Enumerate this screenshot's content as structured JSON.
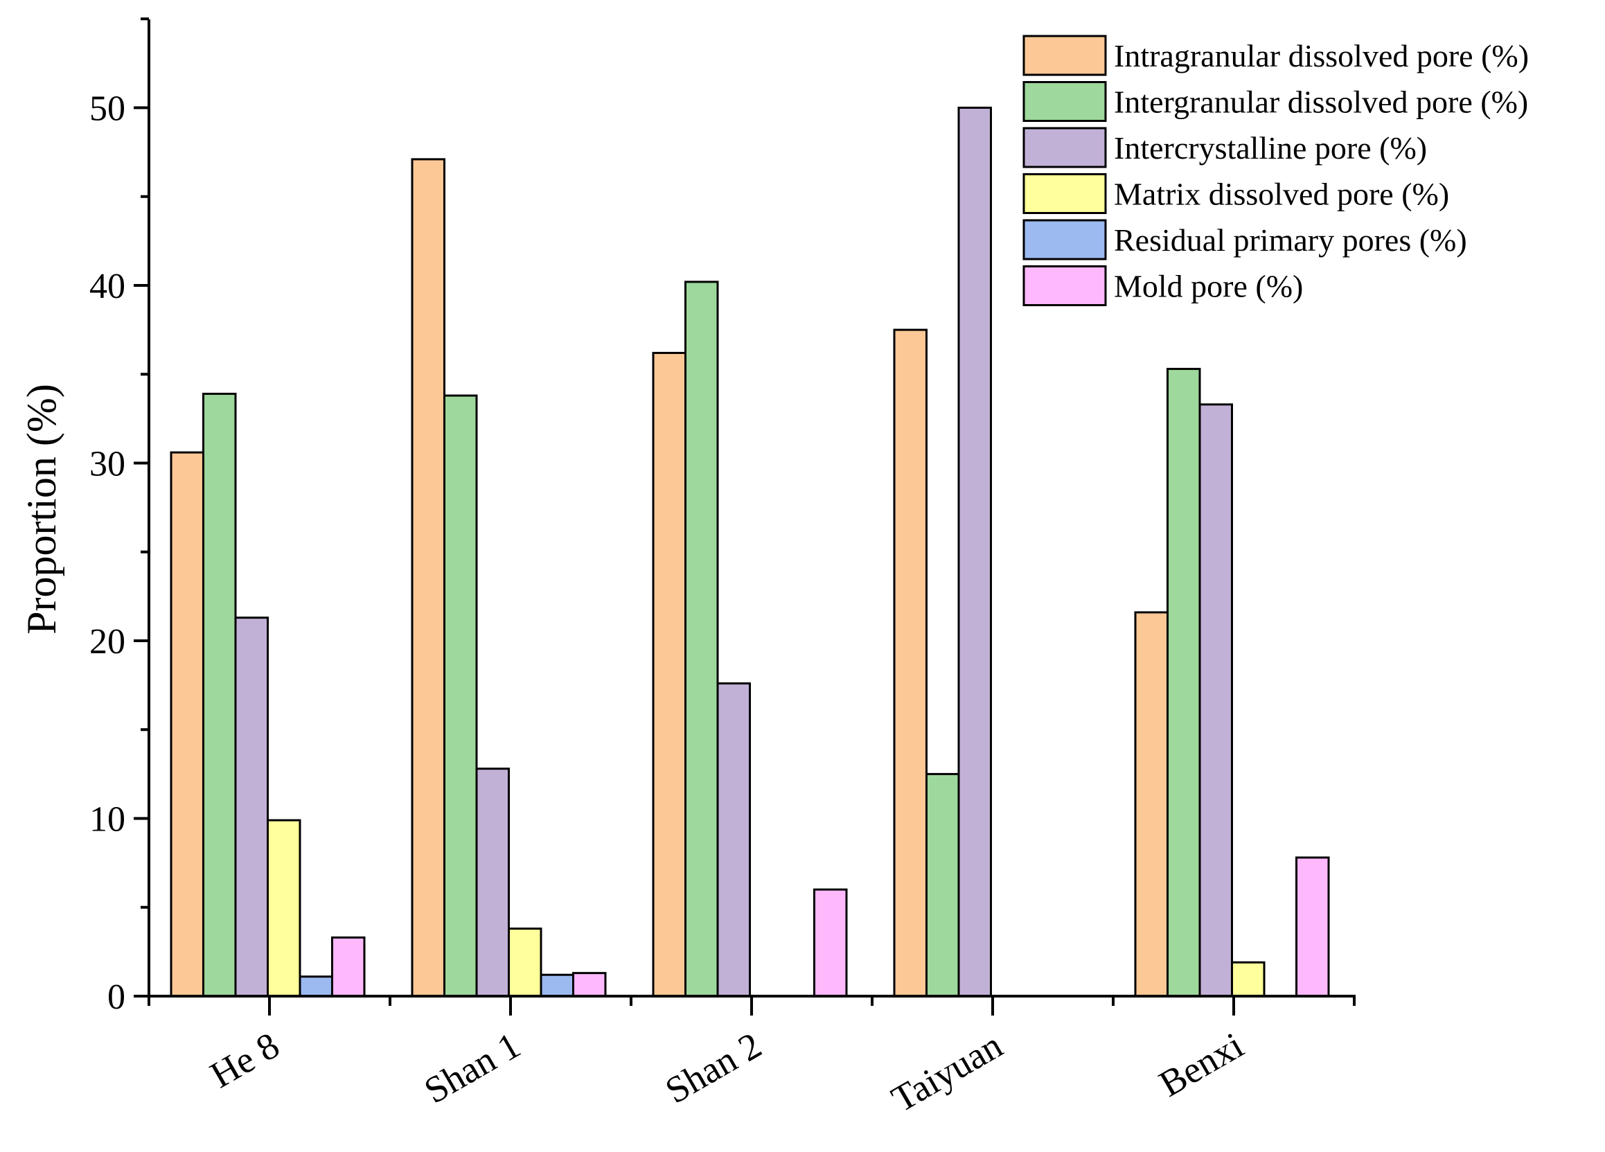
{
  "chart_data": {
    "type": "bar",
    "title": "",
    "xlabel": "",
    "ylabel": "Proportion  (%)",
    "ylim": [
      0,
      55
    ],
    "yticks": [
      0,
      10,
      20,
      30,
      40,
      50
    ],
    "categories": [
      "He 8",
      "Shan 1",
      "Shan 2",
      "Taiyuan",
      "Benxi"
    ],
    "series": [
      {
        "name": "Intragranular dissolved pore (%)",
        "color": "#fcc896",
        "values": [
          30.6,
          47.1,
          36.2,
          37.5,
          21.6
        ]
      },
      {
        "name": "Intergranular dissolved pore (%)",
        "color": "#9ed89c",
        "values": [
          33.9,
          33.8,
          40.2,
          12.5,
          35.3
        ]
      },
      {
        "name": "Intercrystalline pore (%)",
        "color": "#c2b1d7",
        "values": [
          21.3,
          12.8,
          17.6,
          50.0,
          33.3
        ]
      },
      {
        "name": "Matrix dissolved pore (%)",
        "color": "#ffff9c",
        "values": [
          9.9,
          3.8,
          0,
          0,
          1.9
        ]
      },
      {
        "name": "Residual primary pores (%)",
        "color": "#9cb9f0",
        "values": [
          1.1,
          1.2,
          0,
          0,
          0
        ]
      },
      {
        "name": "Mold pore (%)",
        "color": "#feb8fc",
        "values": [
          3.3,
          1.3,
          6.0,
          0,
          7.8
        ]
      }
    ],
    "legend_position": "top-right",
    "grid": false
  }
}
